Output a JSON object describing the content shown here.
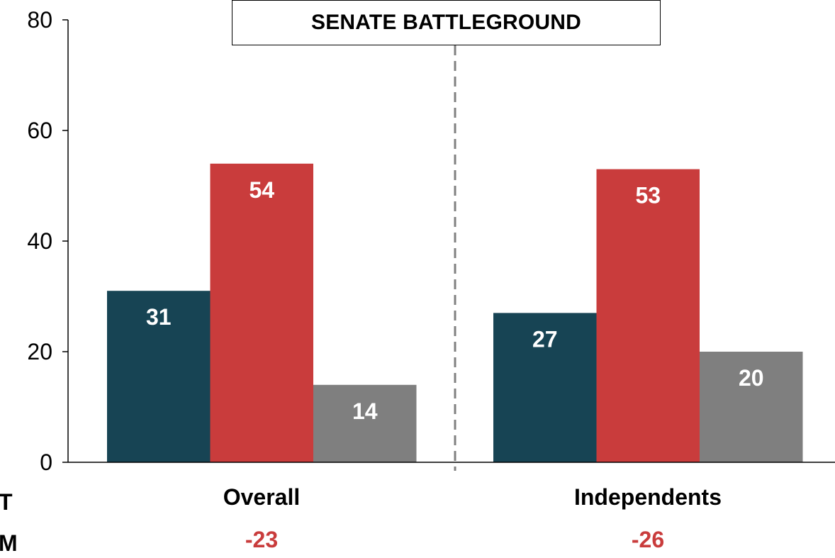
{
  "chart_data": {
    "type": "bar",
    "title": "SENATE BATTLEGROUND",
    "categories": [
      "Overall",
      "Independents"
    ],
    "series": [
      {
        "values": [
          31,
          27
        ],
        "color": "#174454"
      },
      {
        "values": [
          54,
          53
        ],
        "color": "#c93c3c"
      },
      {
        "values": [
          14,
          20
        ],
        "color": "#7f7f7f"
      }
    ],
    "ylim": [
      0,
      80
    ],
    "yticks": [
      0,
      20,
      40,
      60,
      80
    ],
    "xlabel": "",
    "ylabel": "",
    "grid": false,
    "legend": "none",
    "divider": "dashed vertical line between categories",
    "margins": [
      "-23",
      "-26"
    ],
    "margin_color": "#c93c3c",
    "row_labels": [
      "T",
      "M"
    ]
  }
}
